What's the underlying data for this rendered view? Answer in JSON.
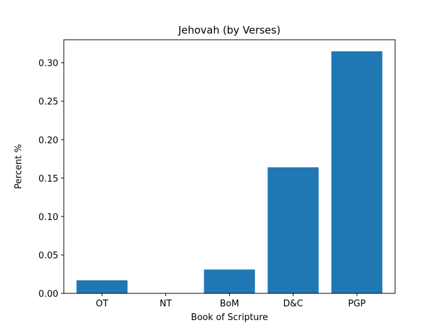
{
  "chart_data": {
    "type": "bar",
    "title": "Jehovah (by Verses)",
    "xlabel": "Book of Scripture",
    "ylabel": "Percent %",
    "categories": [
      "OT",
      "NT",
      "BoM",
      "D&C",
      "PGP"
    ],
    "values": [
      0.017,
      0.0,
      0.031,
      0.164,
      0.315
    ],
    "ylim": [
      0,
      0.33
    ],
    "yticks": [
      "0.00",
      "0.05",
      "0.10",
      "0.15",
      "0.20",
      "0.25",
      "0.30"
    ],
    "bar_color": "#1f77b4",
    "grid": false
  }
}
